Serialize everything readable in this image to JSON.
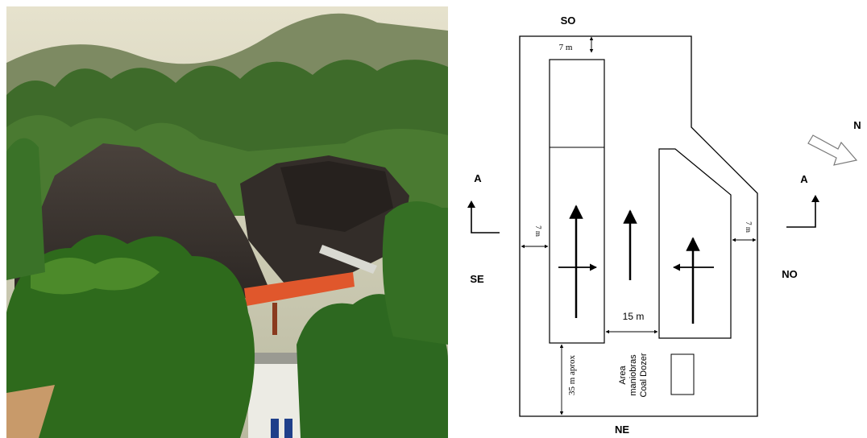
{
  "photo": {
    "subject": "coal-stockpile-photo",
    "colors": {
      "sky": "#d7d3bd",
      "coal": "#3a3430",
      "trees": "#2f6a1e",
      "conveyor": "#e0572c"
    }
  },
  "diagram": {
    "compass": {
      "so": "SO",
      "se": "SE",
      "no": "NO",
      "ne": "NE",
      "north": "N"
    },
    "section_markers": {
      "left": "A",
      "right": "A"
    },
    "dimensions": {
      "top_gap": "7 m",
      "left_gap": "7 m",
      "right_gap": "7 m",
      "between_piles": "15 m",
      "bottom_gap": "35 m aprox"
    },
    "maneuver_area": {
      "line1": "Area",
      "line2": "maniobras",
      "line3": "Coal Dozer"
    }
  }
}
